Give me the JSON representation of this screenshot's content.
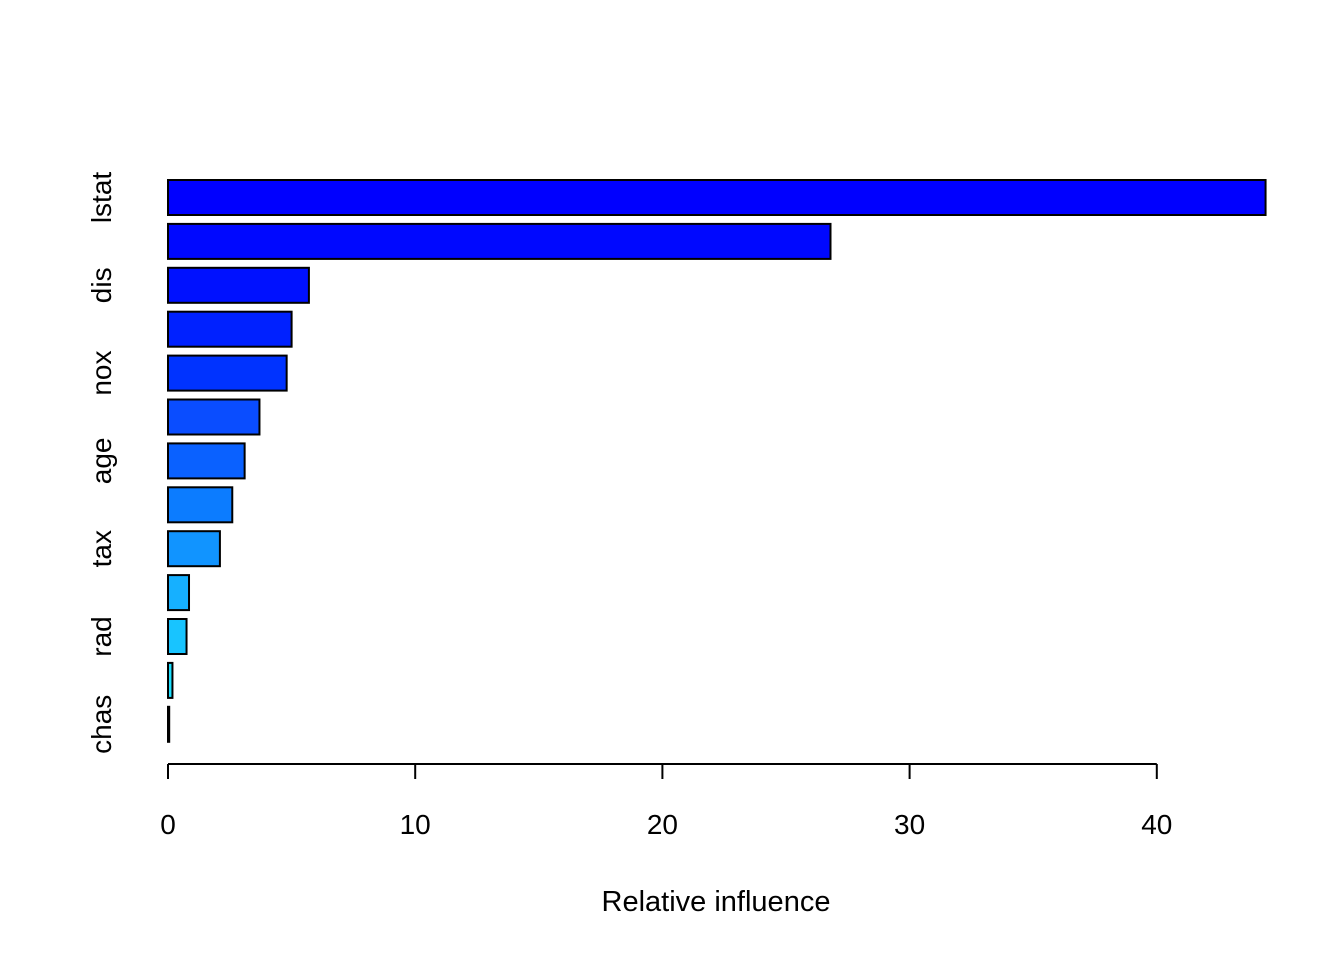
{
  "chart_data": {
    "type": "bar",
    "orientation": "horizontal",
    "title": "",
    "xlabel": "Relative influence",
    "ylabel": "",
    "xlim": [
      0,
      40
    ],
    "x_ticks": [
      0,
      10,
      20,
      30,
      40
    ],
    "y_tick_labels": [
      "lstat",
      "dis",
      "nox",
      "age",
      "tax",
      "rad",
      "chas"
    ],
    "grid": false,
    "legend": "none",
    "values": [
      44.4,
      26.8,
      5.7,
      5.0,
      4.8,
      3.7,
      3.1,
      2.6,
      2.1,
      0.85,
      0.75,
      0.18,
      0.03
    ],
    "bar_colors": [
      "#0000FF",
      "#0008FF",
      "#0011FF",
      "#0021FF",
      "#0033FF",
      "#0A4DFF",
      "#0A61FF",
      "#0C7CFF",
      "#1194FF",
      "#16B0FF",
      "#18C4FF",
      "#1DE0FF",
      "#22EEFF"
    ],
    "bar_outline_color": "#000000"
  }
}
